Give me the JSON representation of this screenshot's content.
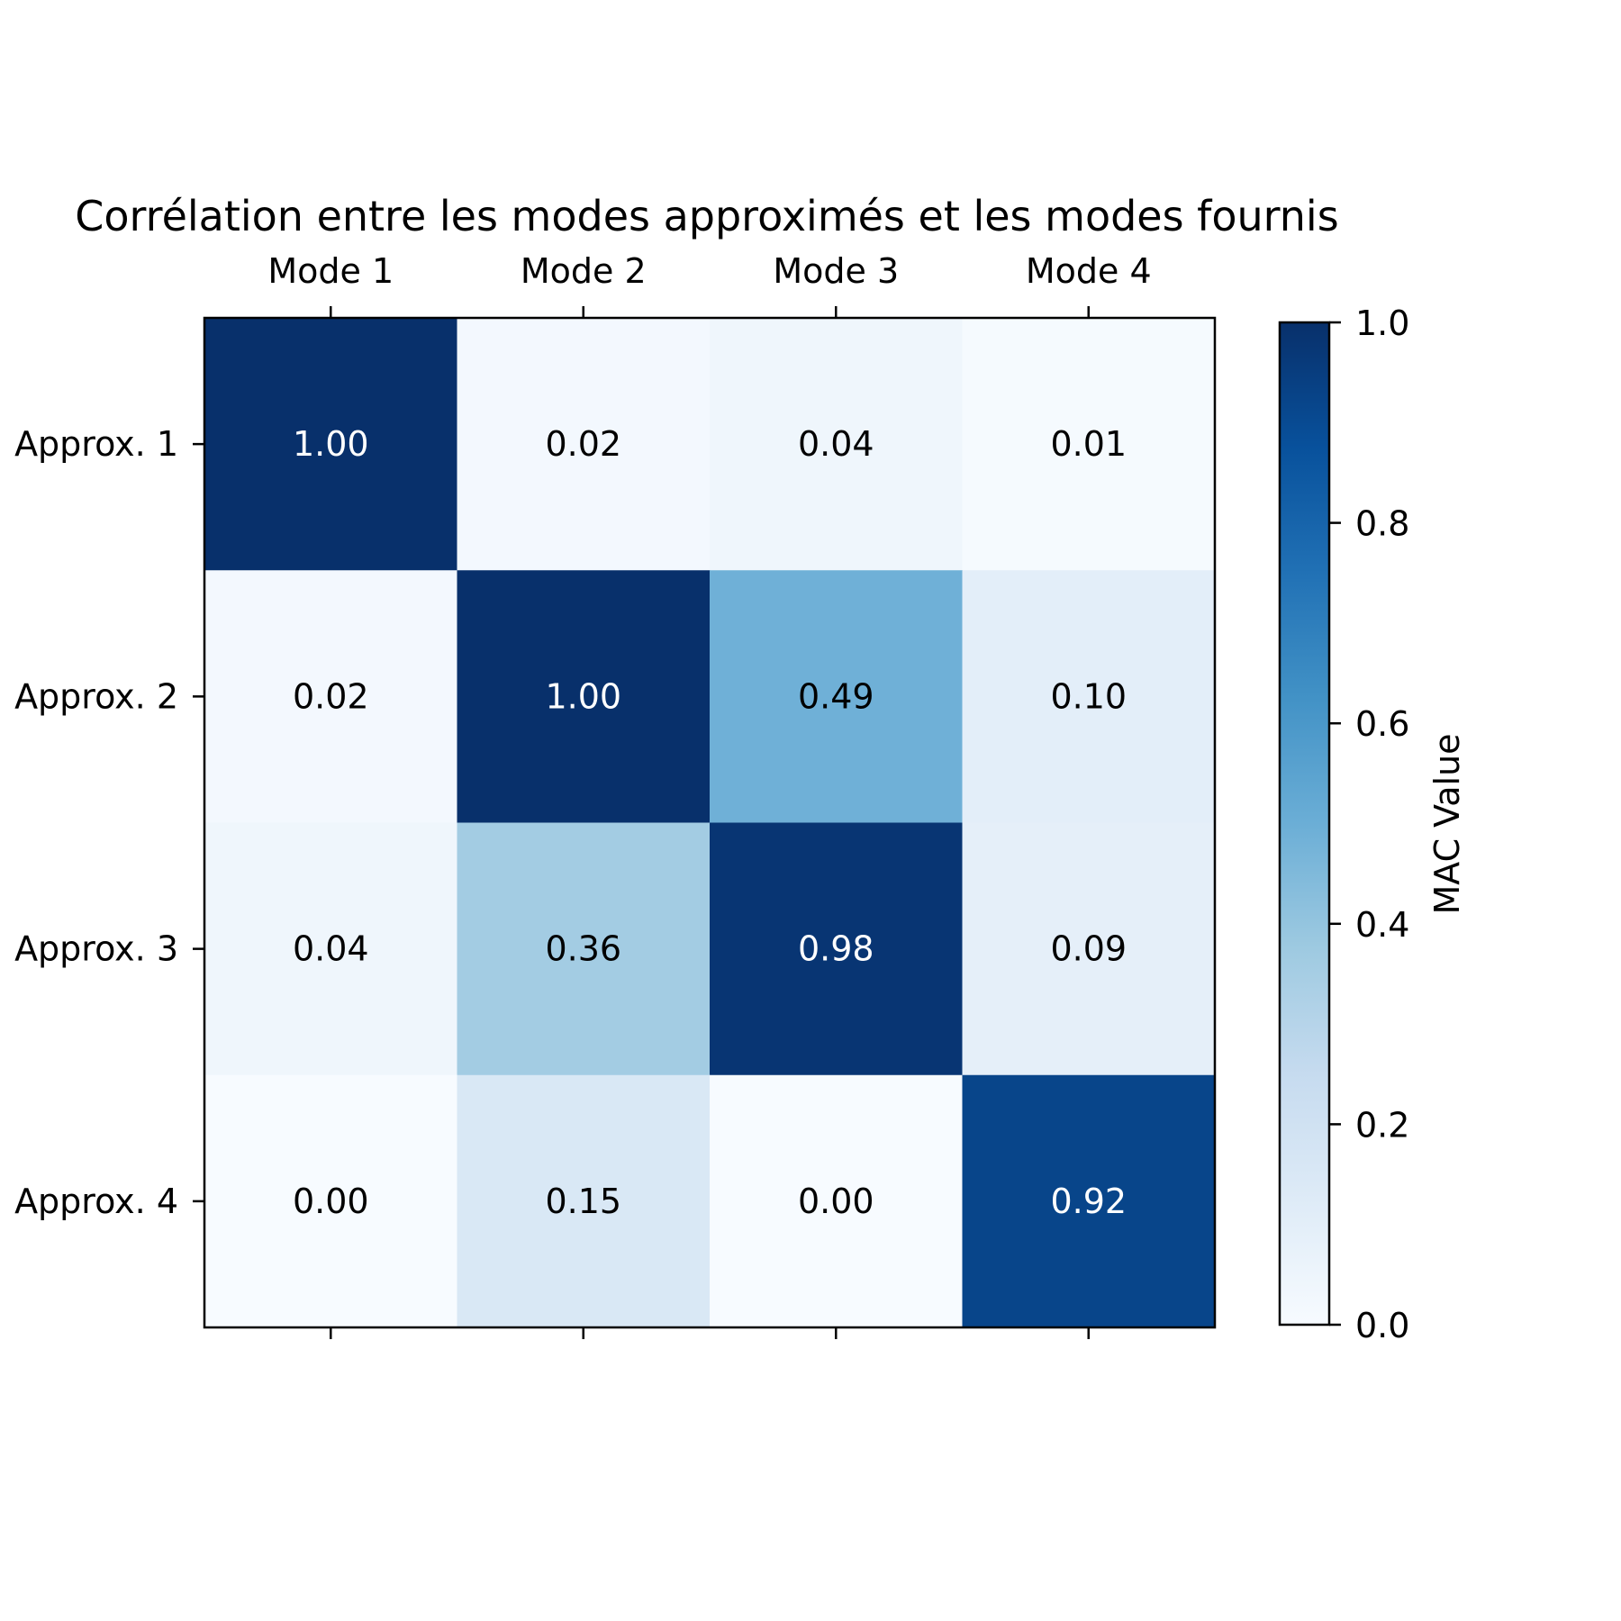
{
  "chart_data": {
    "type": "heatmap",
    "title": "Corrélation entre les modes approximés et les modes fournis",
    "x_categories": [
      "Mode 1",
      "Mode 2",
      "Mode 3",
      "Mode 4"
    ],
    "y_categories": [
      "Approx. 1",
      "Approx. 2",
      "Approx. 3",
      "Approx. 4"
    ],
    "x_axis_position": "top",
    "values": [
      [
        1.0,
        0.02,
        0.04,
        0.01
      ],
      [
        0.02,
        1.0,
        0.49,
        0.1
      ],
      [
        0.04,
        0.36,
        0.98,
        0.09
      ],
      [
        0.0,
        0.15,
        0.0,
        0.92
      ]
    ],
    "value_format": "0.00",
    "colormap": "Blues",
    "colorbar": {
      "label": "MAC Value",
      "range": [
        0.0,
        1.0
      ],
      "ticks": [
        "0.0",
        "0.2",
        "0.4",
        "0.6",
        "0.8",
        "1.0"
      ],
      "position": "right"
    },
    "annotation_text_colors": {
      "dark_cells": "#ffffff",
      "light_cells": "#000000"
    },
    "grid": false
  }
}
